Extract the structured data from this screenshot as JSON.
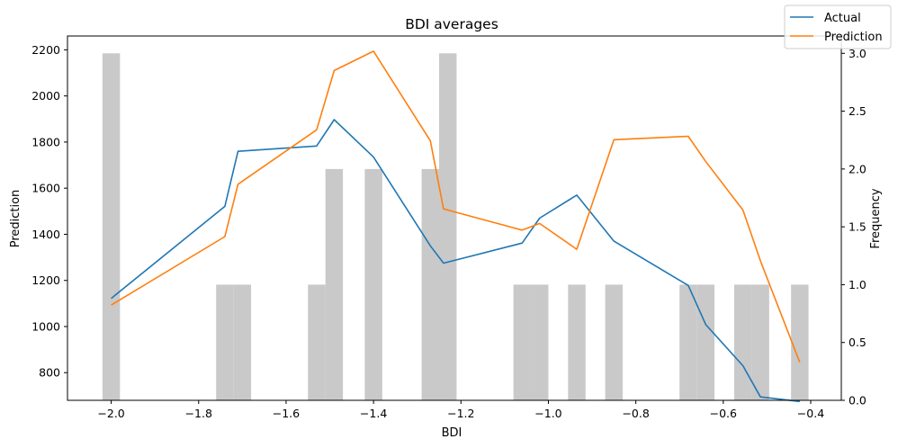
{
  "chart_data": {
    "type": "line",
    "title": "BDI averages",
    "xlabel": "BDI",
    "ylabel": "Prediction",
    "y2label": "Frequency",
    "xlim": [
      -2.1,
      -0.33
    ],
    "ylim": [
      680,
      2260
    ],
    "y2lim": [
      0,
      3.15
    ],
    "xticks": [
      -2.0,
      -1.8,
      -1.6,
      -1.4,
      -1.2,
      -1.0,
      -0.8,
      -0.6,
      -0.4
    ],
    "xtick_labels": [
      "−2.0",
      "−1.8",
      "−1.6",
      "−1.4",
      "−1.2",
      "−1.0",
      "−0.8",
      "−0.6",
      "−0.4"
    ],
    "yticks": [
      800,
      1000,
      1200,
      1400,
      1600,
      1800,
      2000,
      2200
    ],
    "yticks2": [
      0.0,
      0.5,
      1.0,
      1.5,
      2.0,
      2.5,
      3.0
    ],
    "y2tick_labels": [
      "0.0",
      "0.5",
      "1.0",
      "1.5",
      "2.0",
      "2.5",
      "3.0"
    ],
    "legend_position": "top-right",
    "grid": false,
    "series": [
      {
        "name": "Actual",
        "color": "#1f77b4",
        "x": [
          -2.0,
          -1.74,
          -1.71,
          -1.53,
          -1.49,
          -1.4,
          -1.27,
          -1.24,
          -1.06,
          -1.02,
          -0.935,
          -0.85,
          -0.68,
          -0.64,
          -0.555,
          -0.515,
          -0.425
        ],
        "y": [
          1122,
          1521,
          1760,
          1783,
          1897,
          1735,
          1350,
          1275,
          1362,
          1470,
          1570,
          1370,
          1178,
          1008,
          830,
          695,
          675
        ]
      },
      {
        "name": "Prediction",
        "color": "#ff7f0e",
        "x": [
          -2.0,
          -1.74,
          -1.71,
          -1.53,
          -1.49,
          -1.4,
          -1.27,
          -1.24,
          -1.06,
          -1.02,
          -0.935,
          -0.85,
          -0.68,
          -0.64,
          -0.555,
          -0.515,
          -0.425
        ],
        "y": [
          1093,
          1390,
          1617,
          1853,
          2110,
          2194,
          1805,
          1510,
          1418,
          1447,
          1335,
          1810,
          1825,
          1715,
          1505,
          1285,
          845
        ]
      }
    ],
    "histogram": {
      "name": "Frequency",
      "color": "#c9c9c9",
      "bin_width": 0.04,
      "bins": [
        {
          "x": -2.0,
          "count": 3
        },
        {
          "x": -1.74,
          "count": 1
        },
        {
          "x": -1.7,
          "count": 1
        },
        {
          "x": -1.53,
          "count": 1
        },
        {
          "x": -1.49,
          "count": 2
        },
        {
          "x": -1.4,
          "count": 2
        },
        {
          "x": -1.27,
          "count": 2
        },
        {
          "x": -1.23,
          "count": 3
        },
        {
          "x": -1.06,
          "count": 1
        },
        {
          "x": -1.02,
          "count": 1
        },
        {
          "x": -0.935,
          "count": 1
        },
        {
          "x": -0.85,
          "count": 1
        },
        {
          "x": -0.68,
          "count": 1
        },
        {
          "x": -0.64,
          "count": 1
        },
        {
          "x": -0.555,
          "count": 1
        },
        {
          "x": -0.515,
          "count": 1
        },
        {
          "x": -0.425,
          "count": 1
        }
      ]
    }
  }
}
